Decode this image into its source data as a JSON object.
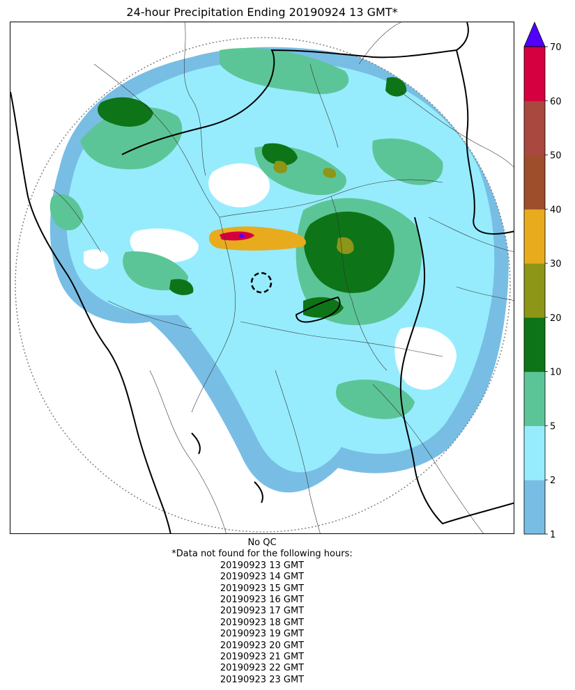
{
  "title": "24-hour Precipitation Ending 20190924 13 GMT*",
  "colorbar": {
    "bands": [
      {
        "from": 1,
        "to": 2,
        "color": "#78bee4"
      },
      {
        "from": 2,
        "to": 5,
        "color": "#96ecfd"
      },
      {
        "from": 5,
        "to": 10,
        "color": "#5cc597"
      },
      {
        "from": 10,
        "to": 20,
        "color": "#0e7418"
      },
      {
        "from": 20,
        "to": 30,
        "color": "#8d9617"
      },
      {
        "from": 30,
        "to": 40,
        "color": "#e8ab1e"
      },
      {
        "from": 40,
        "to": 50,
        "color": "#9e4e2b"
      },
      {
        "from": 50,
        "to": 60,
        "color": "#a8483f"
      },
      {
        "from": 60,
        "to": 70,
        "color": "#d5003f"
      }
    ],
    "extend_color": "#5100ff",
    "ticks": [
      "1",
      "2",
      "5",
      "10",
      "20",
      "30",
      "40",
      "50",
      "60",
      "70"
    ]
  },
  "footer": {
    "qc": "No QC",
    "note": "*Data not found for the following hours:",
    "missing_hours": [
      "20190923 13 GMT",
      "20190923 14 GMT",
      "20190923 15 GMT",
      "20190923 16 GMT",
      "20190923 17 GMT",
      "20190923 18 GMT",
      "20190923 19 GMT",
      "20190923 20 GMT",
      "20190923 21 GMT",
      "20190923 22 GMT",
      "20190923 23 GMT"
    ]
  }
}
